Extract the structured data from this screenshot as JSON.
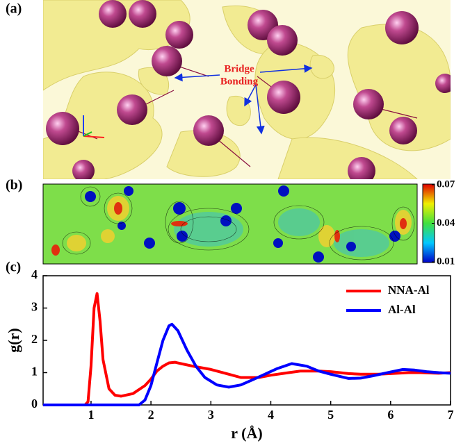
{
  "image": {
    "label": "(a)",
    "annotation": [
      "Bridge",
      "Bonding"
    ]
  },
  "chart_data": [
    {
      "type": "colormap",
      "label": "(b)",
      "clim": [
        0.01,
        0.07
      ],
      "cticks": [
        0.01,
        0.04,
        0.07
      ]
    },
    {
      "type": "line",
      "label": "(c)",
      "xlabel": "r (Å)",
      "ylabel": "g(r)",
      "xlim": [
        0.2,
        7
      ],
      "xticks": [
        1,
        2,
        3,
        4,
        5,
        6,
        7
      ],
      "ylim": [
        0,
        4
      ],
      "yticks": [
        0,
        1,
        2,
        3,
        4
      ],
      "legend": "upper right",
      "series": [
        {
          "name": "NNA-Al",
          "color": "#ff0000",
          "x": [
            0.2,
            0.9,
            0.95,
            1.0,
            1.05,
            1.1,
            1.15,
            1.2,
            1.3,
            1.4,
            1.5,
            1.7,
            1.9,
            2.0,
            2.1,
            2.2,
            2.3,
            2.4,
            2.5,
            2.7,
            3.0,
            3.3,
            3.5,
            3.8,
            4.0,
            4.3,
            4.5,
            4.8,
            5.0,
            5.3,
            5.5,
            5.8,
            6.0,
            6.3,
            6.5,
            6.8,
            7.0
          ],
          "values": [
            0,
            0,
            0.1,
            1.2,
            3.0,
            3.45,
            2.6,
            1.4,
            0.5,
            0.3,
            0.27,
            0.35,
            0.6,
            0.8,
            1.05,
            1.2,
            1.3,
            1.32,
            1.28,
            1.2,
            1.1,
            0.95,
            0.85,
            0.85,
            0.92,
            1.0,
            1.05,
            1.05,
            1.03,
            0.97,
            0.95,
            0.95,
            0.97,
            1.0,
            1.0,
            0.98,
            1.0
          ]
        },
        {
          "name": "Al-Al",
          "color": "#0000ff",
          "x": [
            0.2,
            1.8,
            1.9,
            2.0,
            2.1,
            2.2,
            2.3,
            2.35,
            2.45,
            2.6,
            2.75,
            2.9,
            3.1,
            3.3,
            3.5,
            3.7,
            3.9,
            4.1,
            4.35,
            4.6,
            4.8,
            5.0,
            5.3,
            5.5,
            5.7,
            6.0,
            6.2,
            6.4,
            6.6,
            6.8,
            7.0
          ],
          "values": [
            0,
            0,
            0.15,
            0.6,
            1.3,
            2.0,
            2.45,
            2.5,
            2.3,
            1.7,
            1.2,
            0.85,
            0.62,
            0.55,
            0.62,
            0.78,
            0.95,
            1.12,
            1.28,
            1.2,
            1.05,
            0.95,
            0.82,
            0.83,
            0.9,
            1.02,
            1.1,
            1.08,
            1.03,
            1.0,
            0.98
          ]
        }
      ]
    }
  ]
}
